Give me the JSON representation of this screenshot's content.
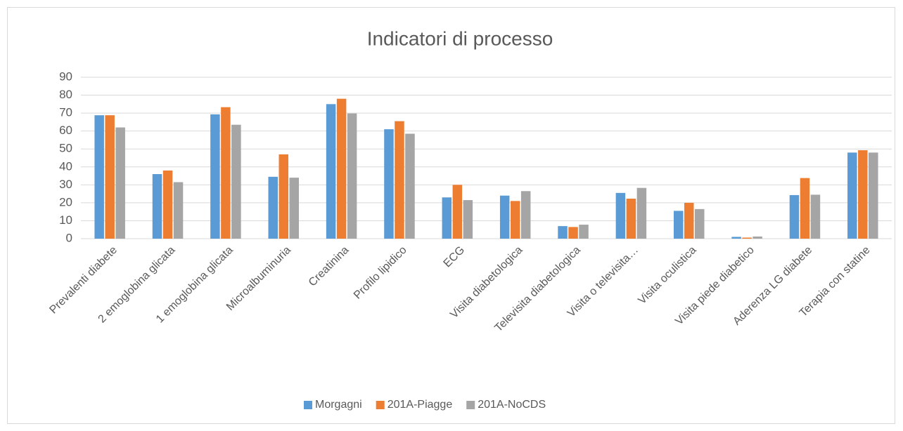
{
  "chart_data": {
    "type": "bar",
    "title": "Indicatori di processo",
    "categories": [
      "Prevalenti diabete",
      "2 emoglobina glicata",
      "1 emoglobina glicata",
      "Microalbuminuria",
      "Creatinina",
      "Profilo lipidico",
      "ECG",
      "Visita diabetologica",
      "Televisita diabetologica",
      "Visita o televisita…",
      "Visita oculistica",
      "Visita piede diabetico",
      "Aderenza LG diabete",
      "Terapia con statine"
    ],
    "series": [
      {
        "name": "Morgagni",
        "color": "#5b9bd5",
        "values": [
          68.8,
          36,
          69.3,
          34.5,
          75,
          61,
          23,
          24,
          7,
          25.5,
          15.5,
          1,
          24.3,
          48
        ]
      },
      {
        "name": "201A-Piagge",
        "color": "#ed7d31",
        "values": [
          68.8,
          38,
          73.3,
          47,
          78,
          65.5,
          30,
          21,
          6.5,
          22.3,
          20,
          0.6,
          33.8,
          49.3
        ]
      },
      {
        "name": "201A-NoCDS",
        "color": "#a5a5a5",
        "values": [
          62,
          31.5,
          63.5,
          34,
          69.8,
          58.5,
          21.5,
          26.5,
          7.8,
          28.3,
          16.5,
          1.2,
          24.5,
          48
        ]
      }
    ],
    "ylim": [
      0,
      90
    ],
    "yticks": [
      0,
      10,
      20,
      30,
      40,
      50,
      60,
      70,
      80,
      90
    ],
    "grid": true,
    "legend": "bottom"
  }
}
